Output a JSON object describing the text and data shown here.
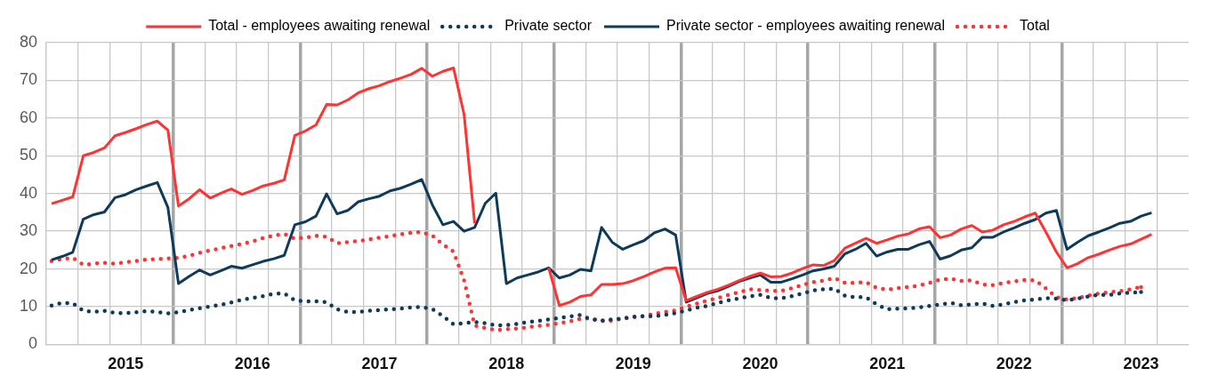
{
  "chart_data": {
    "type": "line",
    "categories": [
      null,
      null,
      null,
      null,
      null,
      null,
      null,
      "2015",
      null,
      null,
      null,
      null,
      null,
      null,
      null,
      null,
      null,
      null,
      null,
      "2016",
      null,
      null,
      null,
      null,
      null,
      null,
      null,
      null,
      null,
      null,
      null,
      "2017",
      null,
      null,
      null,
      null,
      null,
      null,
      null,
      null,
      null,
      null,
      null,
      "2018",
      null,
      null,
      null,
      null,
      null,
      null,
      null,
      null,
      null,
      null,
      null,
      "2019",
      null,
      null,
      null,
      null,
      null,
      null,
      null,
      null,
      null,
      null,
      null,
      "2020",
      null,
      null,
      null,
      null,
      null,
      null,
      null,
      null,
      null,
      null,
      null,
      "2021",
      null,
      null,
      null,
      null,
      null,
      null,
      null,
      null,
      null,
      null,
      null,
      "2022",
      null,
      null,
      null,
      null,
      null,
      null,
      null,
      null,
      null,
      null,
      null,
      "2023",
      null,
      null,
      null,
      null
    ],
    "series": [
      {
        "name": "Total - employees awaiting renewal",
        "color": "#ff3333",
        "line_style": "solid",
        "values": [
          37.3,
          38.2,
          39.1,
          50.0,
          50.9,
          52.1,
          55.3,
          56.2,
          57.2,
          58.3,
          59.2,
          56.8,
          36.7,
          38.6,
          41.0,
          38.8,
          40.1,
          41.2,
          39.8,
          40.8,
          42.0,
          42.7,
          43.6,
          55.4,
          56.6,
          58.2,
          63.6,
          63.5,
          64.8,
          66.7,
          67.8,
          68.6,
          69.7,
          70.6,
          71.6,
          73.2,
          71.1,
          72.4,
          73.3,
          61.0,
          32.1,
          null,
          null,
          null,
          null,
          null,
          null,
          20.3,
          10.3,
          11.2,
          12.7,
          13.1,
          15.9,
          15.9,
          16.1,
          16.9,
          18.0,
          19.2,
          20.2,
          20.3,
          11.6,
          12.7,
          13.8,
          14.6,
          15.7,
          16.9,
          18.0,
          18.9,
          17.9,
          18.0,
          18.9,
          20.1,
          21.1,
          20.9,
          22.2,
          25.5,
          26.8,
          28.1,
          26.8,
          27.7,
          28.7,
          29.3,
          30.6,
          31.2,
          28.3,
          29.0,
          30.6,
          31.5,
          29.8,
          30.3,
          31.7,
          32.6,
          33.8,
          34.8,
          29.8,
          24.5,
          20.3,
          21.4,
          23.0,
          23.9,
          25.0,
          26.0,
          26.6,
          27.9,
          29.2,
          null,
          null,
          null
        ]
      },
      {
        "name": "Private sector",
        "color": "#0e3a5c",
        "line_style": "dotted",
        "values": [
          10.3,
          11.0,
          10.9,
          8.9,
          8.6,
          8.9,
          8.3,
          8.3,
          8.5,
          8.8,
          8.6,
          8.2,
          8.5,
          9.1,
          9.6,
          10.0,
          10.5,
          11.1,
          11.8,
          12.3,
          12.8,
          13.4,
          13.5,
          11.7,
          11.4,
          11.4,
          11.2,
          9.3,
          8.6,
          8.6,
          8.9,
          9.1,
          9.3,
          9.5,
          9.8,
          9.9,
          9.4,
          7.5,
          5.3,
          5.6,
          5.9,
          5.6,
          5.0,
          5.1,
          5.4,
          5.9,
          6.2,
          6.6,
          7.0,
          7.4,
          7.8,
          6.6,
          6.3,
          6.6,
          6.9,
          7.3,
          7.5,
          7.4,
          7.8,
          8.3,
          9.0,
          9.7,
          10.2,
          11.0,
          11.7,
          12.2,
          12.7,
          13.1,
          12.3,
          12.2,
          12.8,
          13.5,
          14.3,
          14.6,
          14.8,
          12.9,
          12.5,
          12.5,
          10.6,
          9.3,
          9.5,
          9.5,
          9.8,
          10.2,
          10.6,
          11.0,
          10.4,
          10.6,
          10.8,
          10.2,
          10.6,
          11.2,
          11.7,
          11.9,
          12.3,
          12.1,
          11.7,
          12.1,
          12.7,
          13.1,
          13.1,
          13.5,
          13.7,
          13.9,
          null,
          null,
          null,
          null
        ]
      },
      {
        "name": "Private sector - employees awaiting renewal",
        "color": "#0e3a5c",
        "line_style": "solid",
        "values": [
          22.4,
          23.3,
          24.4,
          33.2,
          34.4,
          35.1,
          38.9,
          39.7,
          41.0,
          42.0,
          42.9,
          36.3,
          16.1,
          18.0,
          19.7,
          18.4,
          19.5,
          20.7,
          20.2,
          21.1,
          22.0,
          22.7,
          23.6,
          31.7,
          32.5,
          34.0,
          39.9,
          34.6,
          35.5,
          37.8,
          38.6,
          39.3,
          40.7,
          41.4,
          42.5,
          43.7,
          37.0,
          31.7,
          32.6,
          30.0,
          31.0,
          37.4,
          40.1,
          16.1,
          17.6,
          18.4,
          19.2,
          20.3,
          17.6,
          18.4,
          19.9,
          19.5,
          31.0,
          27.1,
          25.2,
          26.4,
          27.5,
          29.6,
          30.6,
          29.0,
          11.2,
          12.3,
          13.5,
          14.2,
          15.4,
          16.7,
          17.6,
          18.4,
          16.5,
          16.5,
          17.4,
          18.4,
          19.5,
          20.0,
          20.7,
          24.0,
          25.2,
          26.8,
          23.4,
          24.5,
          25.2,
          25.2,
          26.4,
          27.3,
          22.6,
          23.5,
          25.0,
          25.6,
          28.4,
          28.4,
          29.8,
          30.9,
          32.1,
          33.1,
          34.8,
          35.5,
          25.2,
          27.1,
          28.8,
          29.8,
          30.9,
          32.1,
          32.6,
          34.0,
          34.9,
          null,
          null,
          null
        ]
      },
      {
        "name": "Total",
        "color": "#ff3333",
        "line_style": "dotted",
        "values": [
          22.1,
          22.6,
          23.0,
          21.1,
          21.4,
          21.6,
          21.4,
          21.8,
          22.1,
          22.5,
          22.6,
          22.8,
          22.9,
          23.5,
          24.3,
          24.9,
          25.5,
          26.1,
          26.6,
          27.3,
          28.2,
          28.8,
          29.3,
          28.0,
          28.3,
          28.8,
          28.5,
          26.8,
          27.1,
          27.4,
          27.8,
          28.3,
          28.7,
          29.2,
          29.6,
          29.8,
          28.8,
          26.5,
          24.6,
          17.0,
          5.0,
          4.3,
          3.8,
          4.0,
          4.2,
          4.5,
          4.9,
          5.2,
          5.6,
          6.1,
          6.8,
          6.9,
          6.2,
          6.3,
          6.8,
          7.2,
          7.5,
          8.1,
          8.6,
          9.0,
          10.0,
          10.8,
          11.6,
          12.3,
          13.1,
          13.8,
          14.6,
          14.4,
          14.2,
          14.2,
          14.9,
          15.7,
          16.5,
          16.9,
          17.6,
          16.3,
          16.3,
          16.5,
          15.0,
          14.5,
          14.9,
          15.2,
          15.6,
          16.3,
          17.2,
          17.4,
          16.8,
          17.0,
          15.9,
          15.7,
          16.3,
          16.7,
          17.1,
          17.0,
          14.8,
          12.5,
          11.9,
          12.3,
          12.9,
          13.5,
          13.8,
          14.1,
          14.6,
          15.2,
          null,
          null,
          null,
          null
        ]
      }
    ],
    "ylim": [
      0,
      80
    ],
    "yticks": [
      0,
      10,
      20,
      30,
      40,
      50,
      60,
      70,
      80
    ],
    "grid": true,
    "legend": "top",
    "marker": "none"
  }
}
